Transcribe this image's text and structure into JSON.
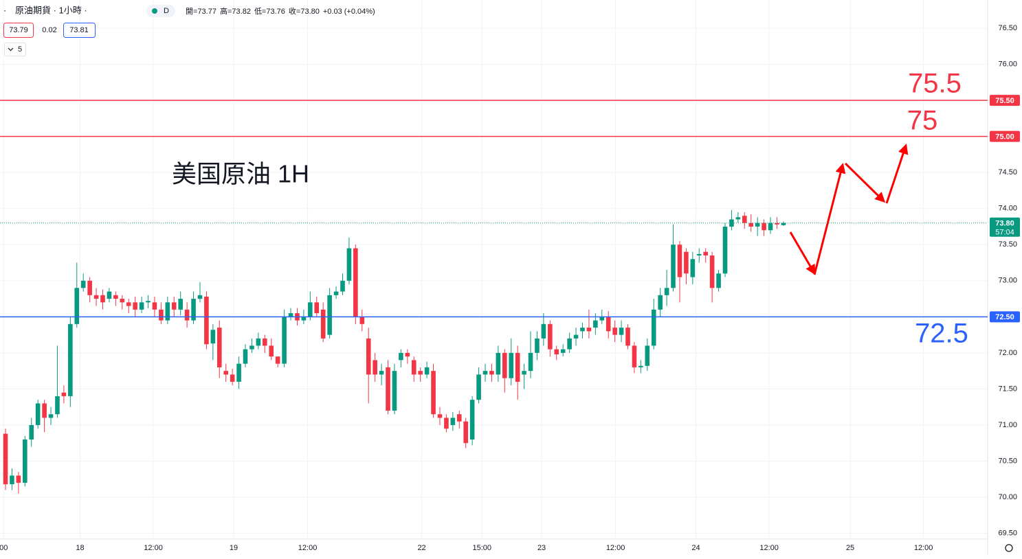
{
  "chart_data": {
    "type": "candlestick",
    "header": {
      "symbol": "原油期貨 · 1小時 ·",
      "interval_badge": "D",
      "change": "+0.03 (+0.04%)",
      "ohlc_legend": [
        {
          "label": "開=",
          "text": "73.77"
        },
        {
          "label": "高=",
          "text": "73.82"
        },
        {
          "label": "低=",
          "text": "73.76"
        },
        {
          "label": "收=",
          "text": "73.80"
        }
      ],
      "bid": "73.79",
      "spread": "0.02",
      "ask": "73.81",
      "indicator_count": "5"
    },
    "annotation": "美国原油 1H",
    "up_color": "#089981",
    "down_color": "#f23645",
    "grid": true,
    "open": [
      70.88,
      70.18,
      70.3,
      70.2,
      70.8,
      71.0,
      71.3,
      71.1,
      71.15,
      71.45,
      71.4,
      72.4,
      72.9,
      73.0,
      72.8,
      72.8,
      72.75,
      72.8,
      72.75,
      72.7,
      72.7,
      72.6,
      72.7,
      72.7,
      72.6,
      72.45,
      72.7,
      72.6,
      72.6,
      72.45,
      72.75,
      72.78,
      72.13,
      72.35,
      71.75,
      71.7,
      71.6,
      71.85,
      72.05,
      72.1,
      72.2,
      72.1,
      71.95,
      71.85,
      72.5,
      72.55,
      72.45,
      72.5,
      72.7,
      72.6,
      72.25,
      72.8,
      72.85,
      73.0,
      73.45,
      72.5,
      72.2,
      71.9,
      71.7,
      71.8,
      71.2,
      71.9,
      72.0,
      71.9,
      71.75,
      71.7,
      71.75,
      71.15,
      71.1,
      71.0,
      71.15,
      71.05,
      70.8,
      71.35,
      71.7,
      71.75,
      71.7,
      72.0,
      71.65,
      72.0,
      71.7,
      71.75,
      72.0,
      72.2,
      72.4,
      72.05,
      72.0,
      72.05,
      72.2,
      72.3,
      72.35,
      72.35,
      72.45,
      72.5,
      72.35,
      72.25,
      72.35,
      72.1,
      71.8,
      71.82,
      72.1,
      72.6,
      72.8,
      72.9,
      73.5,
      73.4,
      73.05,
      73.35,
      73.4,
      73.35,
      72.9,
      73.1,
      73.75,
      73.85,
      73.9,
      73.8,
      73.75,
      73.8,
      73.7,
      73.8,
      73.77
    ],
    "high": [
      70.95,
      70.4,
      70.35,
      70.85,
      71.1,
      71.35,
      71.35,
      71.25,
      72.1,
      71.55,
      72.5,
      73.25,
      73.1,
      73.05,
      72.9,
      72.88,
      72.9,
      72.85,
      72.8,
      72.75,
      72.78,
      72.78,
      72.8,
      72.78,
      72.7,
      72.78,
      72.78,
      72.85,
      72.7,
      72.85,
      72.98,
      72.85,
      72.4,
      72.45,
      71.85,
      71.78,
      71.95,
      72.12,
      72.2,
      72.28,
      72.25,
      72.2,
      71.95,
      72.6,
      72.62,
      72.62,
      72.6,
      72.85,
      72.78,
      72.7,
      72.9,
      72.92,
      73.1,
      73.6,
      73.5,
      72.6,
      72.35,
      72.0,
      71.85,
      71.9,
      71.85,
      72.05,
      72.05,
      71.95,
      71.8,
      71.88,
      71.85,
      71.25,
      71.15,
      71.18,
      71.2,
      71.1,
      71.4,
      71.8,
      71.85,
      71.85,
      72.1,
      72.05,
      72.2,
      72.1,
      71.85,
      72.3,
      72.3,
      72.55,
      72.45,
      72.1,
      72.12,
      72.28,
      72.35,
      72.42,
      72.6,
      72.55,
      72.6,
      72.58,
      72.45,
      72.45,
      72.4,
      72.15,
      71.9,
      72.2,
      72.75,
      72.9,
      73.15,
      73.78,
      73.55,
      73.45,
      73.4,
      73.45,
      73.45,
      73.4,
      73.15,
      73.8,
      73.98,
      73.95,
      73.95,
      73.92,
      73.88,
      73.85,
      73.88,
      73.88,
      73.82
    ],
    "low": [
      70.1,
      70.1,
      70.05,
      70.15,
      70.7,
      70.95,
      70.9,
      71.0,
      71.1,
      71.3,
      71.25,
      72.35,
      72.85,
      72.7,
      72.65,
      72.6,
      72.7,
      72.65,
      72.6,
      72.55,
      72.5,
      72.55,
      72.62,
      72.5,
      72.4,
      72.4,
      72.5,
      72.52,
      72.35,
      72.4,
      72.7,
      72.05,
      71.9,
      71.65,
      71.6,
      71.55,
      71.5,
      71.8,
      72.0,
      72.05,
      72.0,
      71.9,
      71.8,
      71.8,
      72.45,
      72.38,
      72.4,
      72.45,
      72.5,
      72.15,
      72.2,
      72.75,
      72.8,
      72.95,
      72.4,
      72.3,
      71.3,
      71.6,
      71.55,
      71.15,
      71.15,
      71.8,
      71.85,
      71.6,
      71.6,
      71.65,
      71.1,
      71.0,
      70.9,
      70.92,
      70.95,
      70.68,
      70.72,
      71.3,
      71.6,
      71.6,
      71.6,
      71.45,
      71.55,
      71.35,
      71.5,
      71.65,
      71.9,
      72.1,
      71.95,
      71.9,
      71.95,
      72.0,
      72.1,
      72.2,
      72.2,
      72.25,
      72.4,
      72.2,
      72.15,
      72.15,
      72.05,
      71.72,
      71.72,
      71.75,
      72.05,
      72.5,
      72.65,
      72.85,
      72.7,
      72.95,
      72.95,
      73.25,
      73.25,
      72.7,
      72.85,
      73.05,
      73.7,
      73.8,
      73.72,
      73.68,
      73.62,
      73.62,
      73.65,
      73.72,
      73.76
    ],
    "close": [
      70.18,
      70.3,
      70.2,
      70.8,
      71.0,
      71.3,
      71.1,
      71.15,
      71.4,
      71.4,
      72.4,
      72.9,
      73.0,
      72.8,
      72.75,
      72.7,
      72.85,
      72.75,
      72.7,
      72.65,
      72.6,
      72.7,
      72.72,
      72.6,
      72.45,
      72.7,
      72.6,
      72.75,
      72.45,
      72.75,
      72.8,
      72.12,
      72.32,
      71.8,
      71.7,
      71.6,
      71.85,
      72.05,
      72.1,
      72.2,
      72.1,
      71.95,
      71.85,
      72.5,
      72.55,
      72.45,
      72.5,
      72.7,
      72.55,
      72.2,
      72.8,
      72.85,
      73.0,
      73.45,
      72.5,
      72.4,
      71.7,
      71.7,
      71.75,
      71.2,
      71.75,
      72.0,
      71.95,
      71.7,
      71.7,
      71.8,
      71.15,
      71.1,
      70.95,
      71.1,
      71.05,
      70.75,
      71.35,
      71.7,
      71.75,
      71.7,
      72.0,
      71.65,
      72.0,
      71.6,
      71.75,
      72.0,
      72.2,
      72.4,
      72.05,
      71.98,
      72.05,
      72.2,
      72.25,
      72.35,
      72.3,
      72.45,
      72.5,
      72.3,
      72.25,
      72.35,
      72.1,
      71.8,
      71.82,
      72.1,
      72.6,
      72.8,
      72.9,
      73.5,
      73.05,
      73.1,
      73.3,
      73.37,
      73.35,
      72.9,
      73.1,
      73.75,
      73.85,
      73.88,
      73.8,
      73.75,
      73.8,
      73.7,
      73.8,
      73.78,
      73.8
    ],
    "last": {
      "value": 73.8,
      "label": "73.80",
      "countdown": "57:04",
      "color": "#089981"
    },
    "levels": [
      {
        "value": 75.5,
        "label": "75.50",
        "annotation": "75.5",
        "color": "#f23645"
      },
      {
        "value": 75.0,
        "label": "75.00",
        "annotation": "75",
        "color": "#f23645"
      },
      {
        "value": 72.5,
        "label": "72.50",
        "annotation": "72.5",
        "color": "#2962ff"
      }
    ],
    "ylim": [
      69.42,
      76.89
    ],
    "yticks": [
      {
        "value": 69.5,
        "label": "69.50"
      },
      {
        "value": 70,
        "label": "70.00"
      },
      {
        "value": 70.5,
        "label": "70.50"
      },
      {
        "value": 71,
        "label": "71.00"
      },
      {
        "value": 71.5,
        "label": "71.50"
      },
      {
        "value": 72,
        "label": "72.00"
      },
      {
        "value": 72.5,
        "label": "72.50"
      },
      {
        "value": 73,
        "label": "73.00"
      },
      {
        "value": 73.5,
        "label": "73.50"
      },
      {
        "value": 74,
        "label": "74.00"
      },
      {
        "value": 74.5,
        "label": "74.50"
      },
      {
        "value": 75,
        "label": "75.00"
      },
      {
        "value": 75.5,
        "label": "75.50"
      },
      {
        "value": 76,
        "label": "76.00"
      },
      {
        "value": 76.5,
        "label": "76.50"
      }
    ],
    "xlim": [
      -0.85,
      151.5
    ],
    "xticks": [
      {
        "value": -0.3,
        "label": "00"
      },
      {
        "value": 11.5,
        "label": "18"
      },
      {
        "value": 22.8,
        "label": "12:00"
      },
      {
        "value": 35.2,
        "label": "19"
      },
      {
        "value": 46.6,
        "label": "12:00"
      },
      {
        "value": 64.2,
        "label": "22"
      },
      {
        "value": 73.5,
        "label": "15:00"
      },
      {
        "value": 82.7,
        "label": "23"
      },
      {
        "value": 94.1,
        "label": "12:00"
      },
      {
        "value": 106.5,
        "label": "24"
      },
      {
        "value": 117.8,
        "label": "12:00"
      },
      {
        "value": 130.3,
        "label": "25"
      },
      {
        "value": 141.6,
        "label": "12:00"
      }
    ]
  }
}
